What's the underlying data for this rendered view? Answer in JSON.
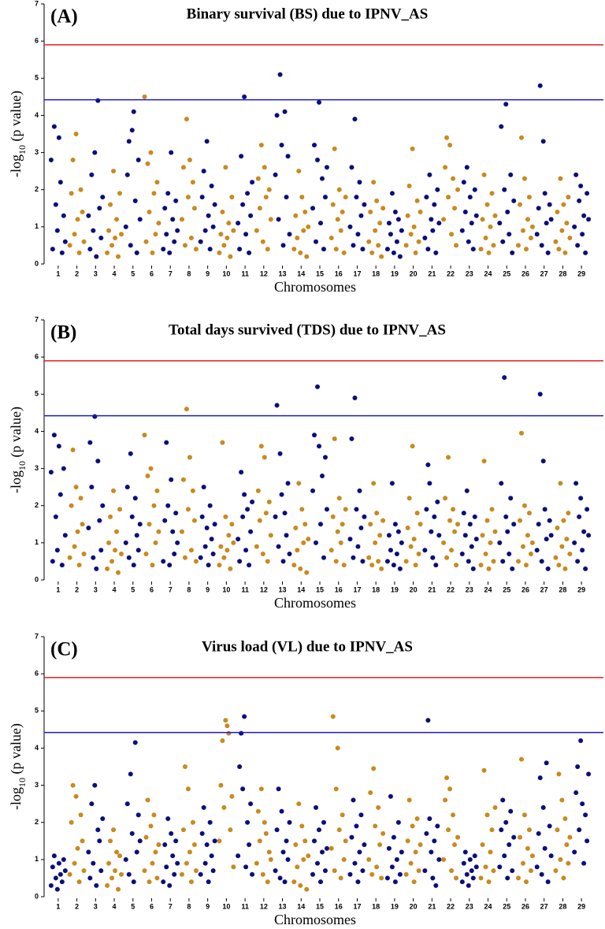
{
  "chart_data": [
    {
      "type": "manhattan",
      "panel_label": "(A)",
      "title": "Binary survival (BS) due to IPNV_AS",
      "x_label": "Chromosomes",
      "y_label": [
        "-log",
        "10",
        " (p value)"
      ],
      "categories": [
        "1",
        "2",
        "3",
        "4",
        "5",
        "6",
        "7",
        "8",
        "9",
        "10",
        "11",
        "12",
        "13",
        "14",
        "15",
        "16",
        "17",
        "18",
        "19",
        "20",
        "21",
        "22",
        "23",
        "24",
        "25",
        "26",
        "27",
        "28",
        "29"
      ],
      "colors": [
        "#0b0f7a",
        "#c98a1e"
      ],
      "ylim": [
        0,
        7
      ],
      "yticks": [
        0,
        1,
        2,
        3,
        4,
        5,
        6,
        7
      ],
      "thresholds": [
        {
          "value": 5.9,
          "color": "#e02020"
        },
        {
          "value": 4.42,
          "color": "#1a1ad0"
        }
      ],
      "values": [
        [
          2.8,
          0.4,
          3.7,
          1.6,
          0.9,
          3.4,
          2.2,
          0.3,
          1.3,
          0.6
        ],
        [
          0.5,
          1.9,
          2.8,
          0.8,
          3.5,
          1.2,
          0.3,
          2.0,
          1.4,
          0.6
        ],
        [
          1.3,
          0.4,
          2.4,
          0.9,
          3.0,
          0.2,
          4.4,
          1.5,
          0.7,
          1.8
        ],
        [
          0.3,
          0.9,
          1.6,
          0.5,
          2.5,
          0.7,
          1.2,
          0.2,
          1.9,
          0.8
        ],
        [
          1.0,
          2.4,
          3.3,
          0.5,
          3.6,
          4.1,
          1.7,
          0.3,
          2.8,
          1.2
        ],
        [
          4.5,
          0.6,
          2.7,
          1.4,
          3.0,
          0.3,
          1.9,
          0.8,
          2.2,
          1.1
        ],
        [
          0.4,
          1.5,
          0.8,
          1.9,
          0.3,
          3.0,
          1.2,
          0.6,
          1.7,
          0.9
        ],
        [
          1.2,
          2.6,
          0.5,
          3.9,
          1.8,
          2.8,
          0.7,
          2.2,
          1.5,
          0.4
        ],
        [
          0.6,
          1.8,
          2.5,
          0.9,
          3.3,
          1.3,
          0.4,
          2.1,
          1.0,
          1.6
        ],
        [
          0.3,
          0.8,
          1.4,
          0.5,
          2.6,
          0.7,
          1.1,
          0.2,
          1.8,
          0.9
        ],
        [
          1.1,
          0.4,
          2.9,
          1.6,
          4.5,
          0.8,
          1.9,
          0.3,
          1.3,
          2.2
        ],
        [
          0.9,
          2.3,
          1.5,
          3.2,
          0.6,
          2.6,
          1.8,
          0.4,
          2.0,
          1.2
        ],
        [
          2.4,
          4.0,
          1.2,
          5.1,
          3.2,
          0.5,
          4.1,
          1.8,
          2.9,
          0.8
        ],
        [
          0.4,
          1.3,
          0.7,
          2.5,
          0.3,
          1.8,
          0.9,
          1.4,
          0.2,
          1.0
        ],
        [
          1.5,
          3.2,
          0.6,
          2.8,
          4.35,
          1.1,
          2.3,
          0.4,
          1.8,
          2.6
        ],
        [
          0.7,
          1.6,
          3.1,
          0.4,
          1.2,
          2.0,
          0.9,
          1.4,
          0.3,
          1.8
        ],
        [
          1.0,
          2.6,
          0.5,
          3.9,
          1.8,
          0.8,
          2.2,
          1.3,
          0.4,
          1.6
        ],
        [
          0.6,
          1.4,
          0.3,
          2.2,
          0.9,
          1.7,
          0.5,
          1.1,
          0.2,
          1.5
        ],
        [
          0.4,
          1.1,
          0.8,
          1.9,
          0.3,
          1.4,
          0.6,
          1.2,
          0.2,
          0.9
        ],
        [
          0.5,
          1.3,
          2.1,
          0.8,
          3.1,
          1.0,
          0.3,
          1.7,
          0.6,
          1.4
        ],
        [
          0.7,
          1.8,
          0.4,
          2.4,
          1.2,
          0.9,
          1.6,
          0.3,
          2.0,
          1.1
        ],
        [
          1.2,
          2.6,
          3.4,
          1.8,
          3.2,
          0.8,
          2.3,
          1.5,
          0.5,
          2.0
        ],
        [
          0.9,
          2.2,
          1.4,
          2.6,
          0.6,
          1.8,
          1.1,
          0.4,
          2.0,
          1.3
        ],
        [
          0.4,
          1.2,
          2.4,
          0.7,
          1.6,
          0.3,
          1.0,
          1.9,
          0.5,
          1.3
        ],
        [
          1.1,
          3.7,
          0.6,
          2.0,
          4.3,
          1.4,
          0.8,
          2.4,
          0.3,
          1.7
        ],
        [
          0.5,
          1.6,
          3.4,
          0.9,
          2.3,
          0.4,
          1.2,
          1.8,
          0.7,
          1.0
        ],
        [
          0.8,
          1.5,
          4.8,
          0.5,
          3.3,
          1.9,
          1.1,
          0.3,
          1.6,
          1.2
        ],
        [
          0.6,
          1.4,
          0.4,
          2.3,
          0.9,
          1.6,
          0.3,
          1.1,
          1.8,
          0.7
        ],
        [
          1.0,
          2.4,
          0.5,
          1.7,
          2.1,
          0.8,
          1.3,
          0.3,
          1.9,
          1.2
        ]
      ]
    },
    {
      "type": "manhattan",
      "panel_label": "(B)",
      "title": "Total days survived (TDS) due to IPNV_AS",
      "x_label": "Chromosomes",
      "y_label": [
        "-log",
        "10",
        " (p value)"
      ],
      "categories": [
        "1",
        "2",
        "3",
        "4",
        "5",
        "6",
        "7",
        "8",
        "9",
        "10",
        "11",
        "12",
        "13",
        "14",
        "15",
        "16",
        "17",
        "18",
        "19",
        "20",
        "21",
        "22",
        "23",
        "24",
        "25",
        "26",
        "27",
        "28",
        "29"
      ],
      "colors": [
        "#0b0f7a",
        "#c98a1e"
      ],
      "ylim": [
        0,
        7
      ],
      "yticks": [
        0,
        1,
        2,
        3,
        4,
        5,
        6,
        7
      ],
      "thresholds": [
        {
          "value": 5.9,
          "color": "#e02020"
        },
        {
          "value": 4.42,
          "color": "#1a1ad0"
        }
      ],
      "values": [
        [
          2.9,
          0.5,
          3.9,
          1.7,
          0.8,
          3.6,
          2.3,
          0.4,
          3.0,
          1.2
        ],
        [
          0.6,
          2.0,
          3.5,
          0.9,
          2.5,
          1.3,
          0.4,
          2.2,
          1.5,
          0.7
        ],
        [
          1.4,
          3.7,
          2.5,
          0.6,
          4.4,
          0.3,
          3.2,
          1.6,
          0.8,
          2.0
        ],
        [
          0.3,
          1.0,
          1.7,
          0.5,
          2.4,
          0.8,
          1.3,
          0.2,
          1.9,
          0.7
        ],
        [
          1.0,
          2.5,
          0.6,
          3.4,
          1.7,
          0.4,
          2.2,
          1.2,
          0.8,
          1.5
        ],
        [
          3.9,
          0.7,
          2.8,
          1.5,
          3.0,
          0.4,
          2.0,
          1.0,
          2.4,
          1.3
        ],
        [
          0.5,
          1.6,
          3.7,
          2.0,
          0.4,
          2.7,
          1.3,
          0.7,
          1.8,
          1.0
        ],
        [
          1.3,
          2.7,
          0.6,
          4.6,
          1.9,
          3.3,
          0.8,
          2.4,
          1.6,
          0.5
        ],
        [
          0.6,
          1.7,
          2.5,
          0.9,
          1.4,
          0.4,
          2.0,
          1.1,
          0.7,
          1.5
        ],
        [
          0.4,
          0.9,
          3.7,
          0.6,
          1.7,
          0.8,
          1.2,
          0.3,
          1.5,
          1.0
        ],
        [
          1.1,
          0.5,
          2.9,
          1.7,
          2.3,
          0.8,
          1.9,
          0.4,
          1.3,
          2.1
        ],
        [
          0.9,
          2.4,
          1.6,
          3.6,
          0.7,
          3.3,
          1.8,
          0.5,
          2.1,
          1.2
        ],
        [
          1.7,
          4.7,
          0.9,
          3.4,
          2.3,
          0.5,
          1.8,
          1.2,
          2.6,
          0.7
        ],
        [
          0.4,
          1.4,
          0.8,
          2.6,
          0.3,
          1.9,
          1.0,
          1.5,
          0.2,
          1.1
        ],
        [
          2.4,
          3.9,
          1.0,
          5.2,
          3.6,
          1.5,
          2.8,
          0.6,
          3.3,
          1.9
        ],
        [
          0.8,
          1.7,
          3.8,
          0.5,
          1.3,
          2.2,
          1.0,
          1.5,
          0.4,
          1.9
        ],
        [
          1.1,
          3.8,
          0.6,
          4.9,
          1.9,
          0.9,
          2.4,
          1.4,
          0.5,
          1.7
        ],
        [
          0.6,
          1.5,
          0.4,
          2.6,
          1.0,
          1.8,
          0.5,
          1.2,
          0.3,
          1.6
        ],
        [
          0.5,
          1.2,
          0.8,
          2.6,
          0.4,
          1.5,
          0.7,
          1.3,
          0.3,
          1.0
        ],
        [
          0.5,
          1.4,
          2.2,
          0.9,
          3.6,
          1.1,
          0.4,
          1.8,
          0.7,
          1.5
        ],
        [
          0.8,
          1.9,
          3.1,
          2.6,
          1.3,
          0.6,
          1.7,
          0.4,
          2.1,
          1.2
        ],
        [
          1.0,
          2.2,
          0.6,
          3.3,
          1.6,
          0.8,
          1.9,
          1.3,
          0.4,
          1.5
        ],
        [
          0.7,
          1.8,
          1.2,
          2.4,
          0.5,
          1.5,
          0.9,
          0.3,
          1.7,
          1.1
        ],
        [
          0.4,
          1.2,
          3.2,
          0.7,
          1.6,
          0.3,
          1.0,
          1.9,
          0.5,
          1.3
        ],
        [
          1.0,
          2.6,
          0.5,
          5.45,
          1.7,
          1.3,
          0.7,
          2.2,
          0.3,
          1.5
        ],
        [
          0.5,
          1.6,
          3.95,
          0.9,
          2.0,
          0.4,
          1.2,
          1.8,
          0.7,
          1.0
        ],
        [
          0.8,
          1.5,
          5.0,
          0.5,
          3.2,
          1.9,
          1.1,
          0.3,
          1.6,
          1.2
        ],
        [
          0.6,
          1.4,
          0.4,
          2.6,
          0.9,
          1.6,
          0.3,
          1.1,
          1.8,
          0.7
        ],
        [
          1.0,
          2.6,
          0.5,
          1.7,
          2.2,
          0.8,
          1.3,
          0.3,
          1.9,
          1.2
        ]
      ]
    },
    {
      "type": "manhattan",
      "panel_label": "(C)",
      "title": "Virus load (VL) due to IPNV_AS",
      "x_label": "Chromosomes",
      "y_label": [
        "-log",
        "10",
        " (p value)"
      ],
      "categories": [
        "1",
        "2",
        "3",
        "4",
        "5",
        "6",
        "7",
        "8",
        "9",
        "10",
        "11",
        "12",
        "13",
        "14",
        "15",
        "16",
        "17",
        "18",
        "19",
        "20",
        "21",
        "22",
        "23",
        "24",
        "25",
        "26",
        "27",
        "28",
        "29"
      ],
      "colors": [
        "#0b0f7a",
        "#c98a1e"
      ],
      "ylim": [
        0,
        7
      ],
      "yticks": [
        0,
        1,
        2,
        3,
        4,
        5,
        6,
        7
      ],
      "thresholds": [
        {
          "value": 5.9,
          "color": "#e02020"
        },
        {
          "value": 4.42,
          "color": "#1a1ad0"
        }
      ],
      "values": [
        [
          0.3,
          0.8,
          1.1,
          0.5,
          0.2,
          0.9,
          0.6,
          0.4,
          1.0,
          0.7
        ],
        [
          0.6,
          2.0,
          3.0,
          0.9,
          2.7,
          1.3,
          0.4,
          2.2,
          1.5,
          0.7
        ],
        [
          1.2,
          0.5,
          2.5,
          0.9,
          3.0,
          0.3,
          1.8,
          1.5,
          0.7,
          2.1
        ],
        [
          0.3,
          0.9,
          1.5,
          0.5,
          1.8,
          0.7,
          1.2,
          0.2,
          1.1,
          0.6
        ],
        [
          1.0,
          2.5,
          0.6,
          3.3,
          1.7,
          0.4,
          4.15,
          1.2,
          2.2,
          1.5
        ],
        [
          0.7,
          1.6,
          2.6,
          0.4,
          1.9,
          0.9,
          2.2,
          1.2,
          0.5,
          1.4
        ],
        [
          0.4,
          1.4,
          0.8,
          2.1,
          0.3,
          1.7,
          1.1,
          0.6,
          1.5,
          0.9
        ],
        [
          0.6,
          1.8,
          3.5,
          0.9,
          2.9,
          1.2,
          0.4,
          2.0,
          1.4,
          0.7
        ],
        [
          0.6,
          1.7,
          2.4,
          0.9,
          1.4,
          0.4,
          2.0,
          1.1,
          0.7,
          1.5
        ],
        [
          1.5,
          3.0,
          4.2,
          2.4,
          4.75,
          4.6,
          4.4,
          1.8,
          2.7,
          0.8
        ],
        [
          1.1,
          3.5,
          4.4,
          2.9,
          4.85,
          0.8,
          2.0,
          1.4,
          2.5,
          0.6
        ],
        [
          0.9,
          2.3,
          1.5,
          2.9,
          0.6,
          2.0,
          1.7,
          0.4,
          1.2,
          1.0
        ],
        [
          0.7,
          1.8,
          2.9,
          0.5,
          2.3,
          1.2,
          0.4,
          1.5,
          1.0,
          2.0
        ],
        [
          0.4,
          1.4,
          0.8,
          2.5,
          0.3,
          1.9,
          1.0,
          1.5,
          0.2,
          1.1
        ],
        [
          0.6,
          1.5,
          2.4,
          0.9,
          1.8,
          0.4,
          1.2,
          2.0,
          0.7,
          1.3
        ],
        [
          1.3,
          4.85,
          0.7,
          2.9,
          4.0,
          1.8,
          0.5,
          2.2,
          1.0,
          1.5
        ],
        [
          0.6,
          1.6,
          2.6,
          0.9,
          1.9,
          0.4,
          1.2,
          2.2,
          0.7,
          1.4
        ],
        [
          1.0,
          2.8,
          0.6,
          3.45,
          1.9,
          0.8,
          2.4,
          1.4,
          0.5,
          1.7
        ],
        [
          0.5,
          1.3,
          2.7,
          0.8,
          1.6,
          0.4,
          1.0,
          2.0,
          0.6,
          1.2
        ],
        [
          0.6,
          1.5,
          2.6,
          0.9,
          1.9,
          0.4,
          1.2,
          2.1,
          0.7,
          1.4
        ],
        [
          0.7,
          1.7,
          4.75,
          2.1,
          1.2,
          0.5,
          1.5,
          0.3,
          1.9,
          1.0
        ],
        [
          1.0,
          2.6,
          3.2,
          1.8,
          2.9,
          0.7,
          2.2,
          1.4,
          0.5,
          1.6
        ],
        [
          0.4,
          0.9,
          1.2,
          0.6,
          0.3,
          1.0,
          0.7,
          0.5,
          1.1,
          0.8
        ],
        [
          0.5,
          1.4,
          3.4,
          0.8,
          2.2,
          0.4,
          1.2,
          1.8,
          0.7,
          2.4
        ],
        [
          0.8,
          1.8,
          2.6,
          1.1,
          2.0,
          0.5,
          1.4,
          2.3,
          0.7,
          1.6
        ],
        [
          0.5,
          1.6,
          3.7,
          0.9,
          2.2,
          0.4,
          1.3,
          1.8,
          0.7,
          1.1
        ],
        [
          0.8,
          1.7,
          3.2,
          0.6,
          2.4,
          1.3,
          3.6,
          0.4,
          1.9,
          1.1
        ],
        [
          0.7,
          1.8,
          3.3,
          1.0,
          2.6,
          0.5,
          2.1,
          1.4,
          0.9,
          1.6
        ],
        [
          1.2,
          2.8,
          3.5,
          1.8,
          4.2,
          2.5,
          0.9,
          2.2,
          1.5,
          3.3
        ]
      ]
    }
  ]
}
